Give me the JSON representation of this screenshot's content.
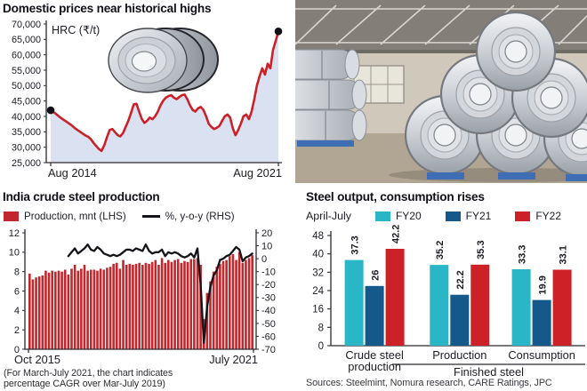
{
  "photo": {
    "description": "Steel coils stacked in a warehouse"
  },
  "chart_data": [
    {
      "id": "hrc-price",
      "type": "area",
      "title": "Domestic prices near historical highs",
      "series_label": "HRC (₹/t)",
      "x_tick_labels": [
        "Aug 2014",
        "Aug 2021"
      ],
      "y_axis": {
        "min": 25000,
        "max": 70000,
        "tick_labels": [
          "70,000",
          "65,000",
          "60,000",
          "55,000",
          "50,000",
          "45,000",
          "40,000",
          "35,000",
          "30,000",
          "25,000"
        ]
      },
      "values_inr_per_tonne": [
        42000,
        41400,
        40800,
        40100,
        39400,
        38800,
        38200,
        37600,
        37000,
        36200,
        35600,
        35000,
        34400,
        33800,
        33400,
        32600,
        31400,
        30400,
        29400,
        28800,
        30600,
        33200,
        35600,
        35900,
        34900,
        33900,
        33500,
        34600,
        36600,
        38600,
        41200,
        43900,
        44100,
        41600,
        39200,
        37900,
        38600,
        39600,
        39100,
        40100,
        41600,
        43600,
        45100,
        46100,
        46600,
        46900,
        46100,
        45600,
        46300,
        46900,
        47100,
        45600,
        43600,
        42100,
        41600,
        42600,
        43100,
        42100,
        40100,
        37600,
        36600,
        35900,
        36300,
        36900,
        38600,
        40100,
        40600,
        39600,
        36100,
        33900,
        35600,
        37600,
        40100,
        40600,
        39100,
        41600,
        45600,
        50100,
        53100,
        55600,
        53600,
        57100,
        55600,
        61600,
        64500,
        67600
      ],
      "line_color": "#cb2128",
      "fill_color": "#dae2f1",
      "marker_color": "#111116",
      "markers": "first and last point"
    },
    {
      "id": "india-crude-steel-production",
      "type": "bar",
      "title": "India crude steel production",
      "legend": [
        {
          "label": "Production, mnt (LHS)",
          "color": "#c1282d",
          "type": "bar"
        },
        {
          "label": "%, y-o-y (RHS)",
          "color": "#141419",
          "type": "line"
        }
      ],
      "x_tick_labels": [
        "Oct 2015",
        "July 2021"
      ],
      "left_axis": {
        "min": 0,
        "max": 12,
        "ticks": [
          12,
          10,
          8,
          6,
          4,
          2,
          0
        ]
      },
      "right_axis": {
        "min": -70,
        "max": 20,
        "ticks": [
          20,
          10,
          0,
          -10,
          -20,
          -30,
          -40,
          -50,
          -60,
          -70
        ]
      },
      "bars_mnt": [
        7.8,
        7.2,
        7.4,
        7.5,
        7.6,
        8.1,
        7.9,
        8.1,
        8.0,
        8.1,
        8.0,
        8.2,
        7.7,
        8.3,
        8.7,
        8.1,
        8.3,
        8.7,
        8.1,
        8.2,
        8.2,
        8.1,
        8.3,
        8.2,
        8.4,
        8.5,
        8.8,
        8.9,
        8.3,
        9.2,
        8.7,
        8.8,
        8.7,
        8.8,
        8.9,
        8.7,
        8.9,
        8.8,
        9.0,
        9.2,
        8.7,
        9.4,
        8.9,
        9.2,
        9.0,
        9.2,
        9.3,
        8.9,
        9.1,
        9.0,
        9.3,
        9.3,
        9.4,
        8.7,
        3.1,
        5.8,
        7.0,
        8.0,
        8.5,
        8.8,
        9.1,
        9.2,
        9.6,
        9.8,
        9.2,
        10.0,
        8.9,
        9.2,
        9.4,
        9.7
      ],
      "yoy_pct": [
        null,
        null,
        null,
        null,
        null,
        null,
        null,
        null,
        null,
        null,
        null,
        null,
        2,
        5,
        8,
        4,
        6,
        8,
        11,
        7,
        6,
        9,
        7,
        4,
        3,
        2,
        3,
        2,
        3,
        5,
        7,
        7,
        6,
        8,
        7,
        6,
        11,
        6,
        4,
        5,
        5,
        7,
        2,
        5,
        4,
        5,
        4,
        2,
        1,
        2,
        4,
        1,
        8,
        -20,
        -65,
        -37,
        -22,
        -13,
        -9,
        -1,
        0,
        2,
        3,
        6,
        9,
        7,
        -2,
        1,
        2,
        4
      ],
      "bar_color": "#c1282d",
      "line_color": "#141419",
      "footnote_line1": "(For March-July 2021, the chart indicates",
      "footnote_line2": "percentage CAGR over Mar-July 2019)"
    },
    {
      "id": "steel-output-consumption",
      "type": "bar",
      "title": "Steel output, consumption rises",
      "subtitle": "April-July",
      "legend": [
        {
          "label": "FY20",
          "color": "#29b7c8"
        },
        {
          "label": "FY21",
          "color": "#15588a"
        },
        {
          "label": "FY22",
          "color": "#cc2127"
        }
      ],
      "categories": [
        "Crude steel production",
        "Production",
        "Consumption"
      ],
      "category_lines": [
        [
          "Crude steel",
          "production"
        ],
        [
          "Production"
        ],
        [
          "Consumption"
        ]
      ],
      "category_group": {
        "label": "Finished steel",
        "spans": [
          "Production",
          "Consumption"
        ]
      },
      "series": [
        {
          "name": "FY20",
          "color": "#29b7c8",
          "values": [
            37.3,
            35.2,
            33.3
          ],
          "labels": [
            "37.3",
            "35.2",
            "33.3"
          ]
        },
        {
          "name": "FY21",
          "color": "#15588a",
          "values": [
            26,
            22.2,
            19.9
          ],
          "labels": [
            "26",
            "22.2",
            "19.9"
          ]
        },
        {
          "name": "FY22",
          "color": "#cc2127",
          "values": [
            42.2,
            35.3,
            33.1
          ],
          "labels": [
            "42.2",
            "35.3",
            "33.1"
          ]
        }
      ],
      "y_axis": {
        "min": 0,
        "max": 48,
        "ticks": [
          0,
          8,
          16,
          24,
          32,
          40,
          48
        ]
      },
      "source": "Sources: Steelmint, Nomura research, CARE Ratings, JPC"
    }
  ]
}
